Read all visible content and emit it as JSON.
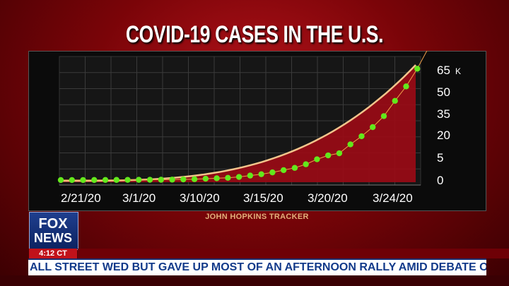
{
  "header": {
    "title": "COVID-19 CASES IN THE U.S."
  },
  "source_label": "JOHN HOPKINS TRACKER",
  "network": {
    "logo_top": "FOX",
    "logo_bottom": "NEWS",
    "clock": "4:12 CT"
  },
  "ticker": {
    "text": "ALL STREET WED BUT GAVE UP MOST OF AN AFTERNOON RALLY AMID DEBATE OVER SENATE CORONAVIRU"
  },
  "colors": {
    "background": "#7a0408",
    "dots": "#63e81c",
    "curve": "#f3c58c",
    "area": "#a50a16"
  },
  "chart_data": {
    "type": "line",
    "title": "COVID-19 CASES IN THE U.S.",
    "xlabel": "",
    "ylabel": "",
    "x_ticks": [
      "2/21/20",
      "3/1/20",
      "3/10/20",
      "3/15/20",
      "3/20/20",
      "3/24/20"
    ],
    "y_ticks": [
      "0",
      "5",
      "20",
      "35",
      "50",
      "65"
    ],
    "y_unit": "K",
    "grid": true,
    "series": [
      {
        "values": [
          0.01,
          0.01,
          0.01,
          0.02,
          0.03,
          0.04,
          0.05,
          0.06,
          0.07,
          0.08,
          0.1,
          0.15,
          0.2,
          0.3,
          0.4,
          0.5,
          0.7,
          1.0,
          1.3,
          1.7,
          2.2,
          2.7,
          3.5,
          4.6,
          6.4,
          7.8,
          13.7,
          19.1,
          25.5,
          33.3,
          43.8,
          53.7,
          65.8,
          80
        ]
      }
    ]
  }
}
